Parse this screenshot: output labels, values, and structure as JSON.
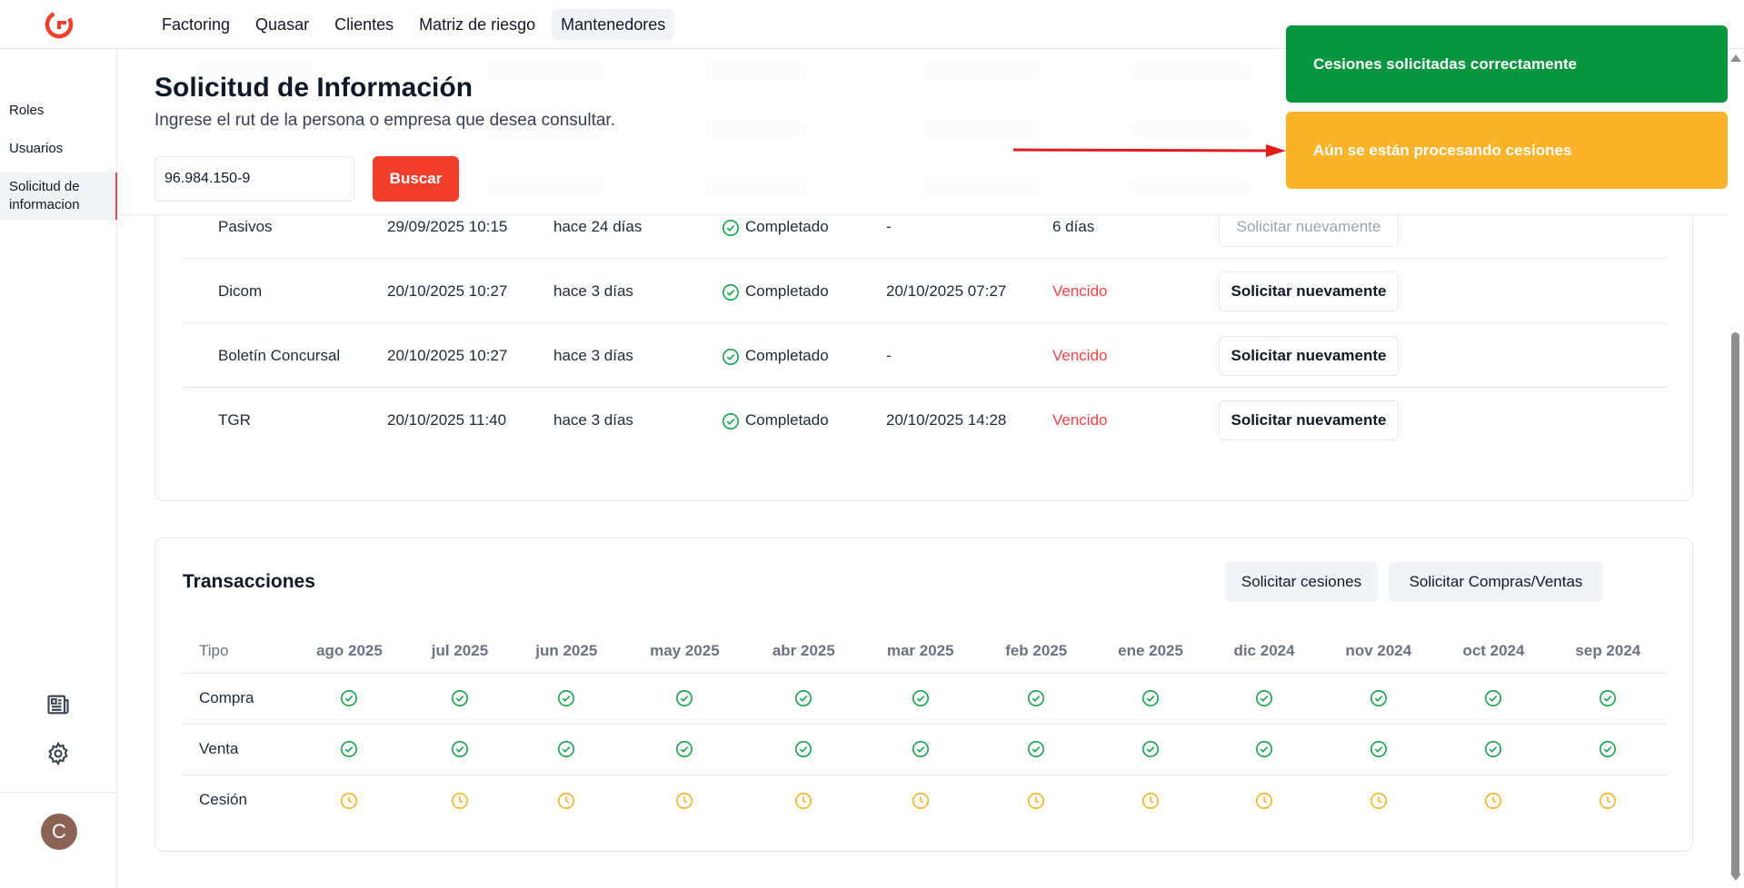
{
  "nav": {
    "items": [
      "Factoring",
      "Quasar",
      "Clientes",
      "Matriz de riesgo",
      "Mantenedores"
    ],
    "active": "Mantenedores"
  },
  "sidebar": {
    "items": [
      {
        "label": "Roles"
      },
      {
        "label": "Usuarios"
      },
      {
        "label": "Solicitud de informacion",
        "active": true
      }
    ],
    "icons": [
      "newspaper-icon",
      "gear-icon"
    ],
    "avatar_initial": "C"
  },
  "header": {
    "title": "Solicitud de Información",
    "subtitle": "Ingrese el rut de la persona o empresa que desea consultar.",
    "rut_value": "96.984.150-9",
    "search_label": "Buscar"
  },
  "sources": [
    {
      "name": "Pasivos",
      "date": "29/09/2025 10:15",
      "ago": "hace 24 días",
      "status": "Completado",
      "expiry": "-",
      "validity": "6 días",
      "validity_expired": false,
      "button": "Solicitar nuevamente",
      "button_disabled": true
    },
    {
      "name": "Dicom",
      "date": "20/10/2025 10:27",
      "ago": "hace 3 días",
      "status": "Completado",
      "expiry": "20/10/2025 07:27",
      "validity": "Vencido",
      "validity_expired": true,
      "button": "Solicitar nuevamente",
      "button_disabled": false
    },
    {
      "name": "Boletín Concursal",
      "date": "20/10/2025 10:27",
      "ago": "hace 3 días",
      "status": "Completado",
      "expiry": "-",
      "validity": "Vencido",
      "validity_expired": true,
      "button": "Solicitar nuevamente",
      "button_disabled": false
    },
    {
      "name": "TGR",
      "date": "20/10/2025 11:40",
      "ago": "hace 3 días",
      "status": "Completado",
      "expiry": "20/10/2025 14:28",
      "validity": "Vencido",
      "validity_expired": true,
      "button": "Solicitar nuevamente",
      "button_disabled": false
    }
  ],
  "transactions": {
    "title": "Transacciones",
    "btn_cesiones": "Solicitar cesiones",
    "btn_compras": "Solicitar Compras/Ventas",
    "type_header": "Tipo",
    "months": [
      "ago 2025",
      "jul 2025",
      "jun 2025",
      "may 2025",
      "abr 2025",
      "mar 2025",
      "feb 2025",
      "ene 2025",
      "dic 2024",
      "nov 2024",
      "oct 2024",
      "sep 2024"
    ],
    "rows": [
      {
        "type": "Compra",
        "status": "complete"
      },
      {
        "type": "Venta",
        "status": "complete"
      },
      {
        "type": "Cesión",
        "status": "pending"
      }
    ]
  },
  "toasts": {
    "success": "Cesiones solicitadas correctamente",
    "warning": "Aún se están procesando cesiones"
  },
  "colors": {
    "brand": "#f03e2a",
    "success": "#07963f",
    "warning": "#fbb32a",
    "expired": "#ef4444",
    "check": "#16a34a",
    "pending": "#f5b324"
  }
}
